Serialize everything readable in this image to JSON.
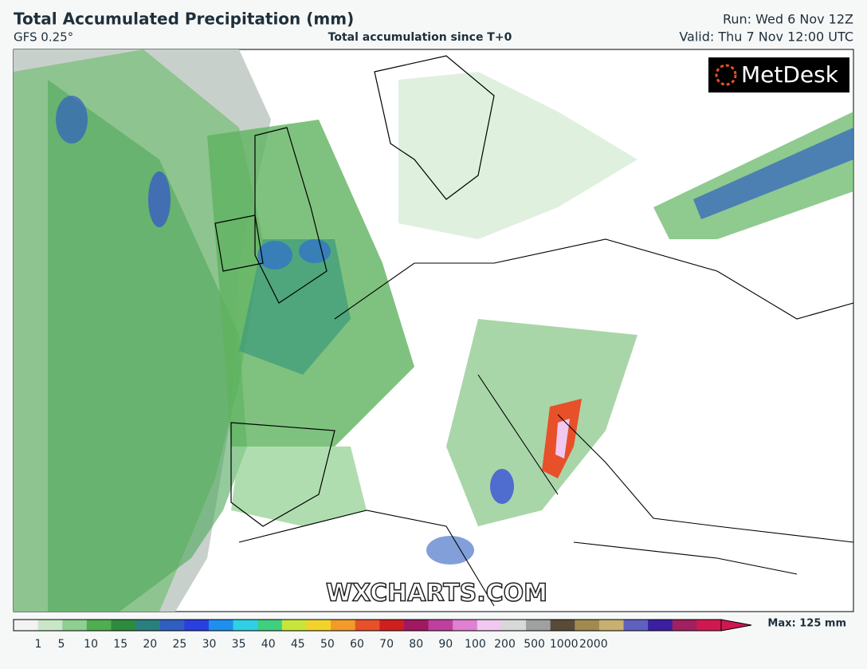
{
  "header": {
    "title": "Total Accumulated Precipitation (mm)",
    "model": "GFS 0.25°",
    "subtitle": "Total accumulation since T+0",
    "run": "Run: Wed 6 Nov 12Z",
    "valid": "Valid: Thu 7 Nov 12:00 UTC"
  },
  "logo": "MetDesk",
  "watermark": "WXCHARTS.COM",
  "legend": {
    "ticks": [
      1,
      5,
      10,
      15,
      20,
      25,
      30,
      35,
      40,
      45,
      50,
      60,
      70,
      80,
      90,
      100,
      200,
      500,
      1000,
      2000
    ],
    "colors": [
      "#f2f2f2",
      "#c9e6c9",
      "#8fcf8f",
      "#4fae4f",
      "#2e8b3e",
      "#2a7f7f",
      "#2f5fc0",
      "#2a3fe0",
      "#1f8fef",
      "#2fd0e6",
      "#3fd07f",
      "#c8e63a",
      "#f2d32a",
      "#f29a2a",
      "#e8502a",
      "#d01f1f",
      "#a01860",
      "#c040a0",
      "#e080d0",
      "#f0c8f0",
      "#d8d8d8",
      "#a0a0a0",
      "#5a4a3a",
      "#a08a50",
      "#c8b070",
      "#6060c0",
      "#3a20a0",
      "#a02060",
      "#d01850"
    ],
    "max_label": "Max: 125 mm"
  }
}
